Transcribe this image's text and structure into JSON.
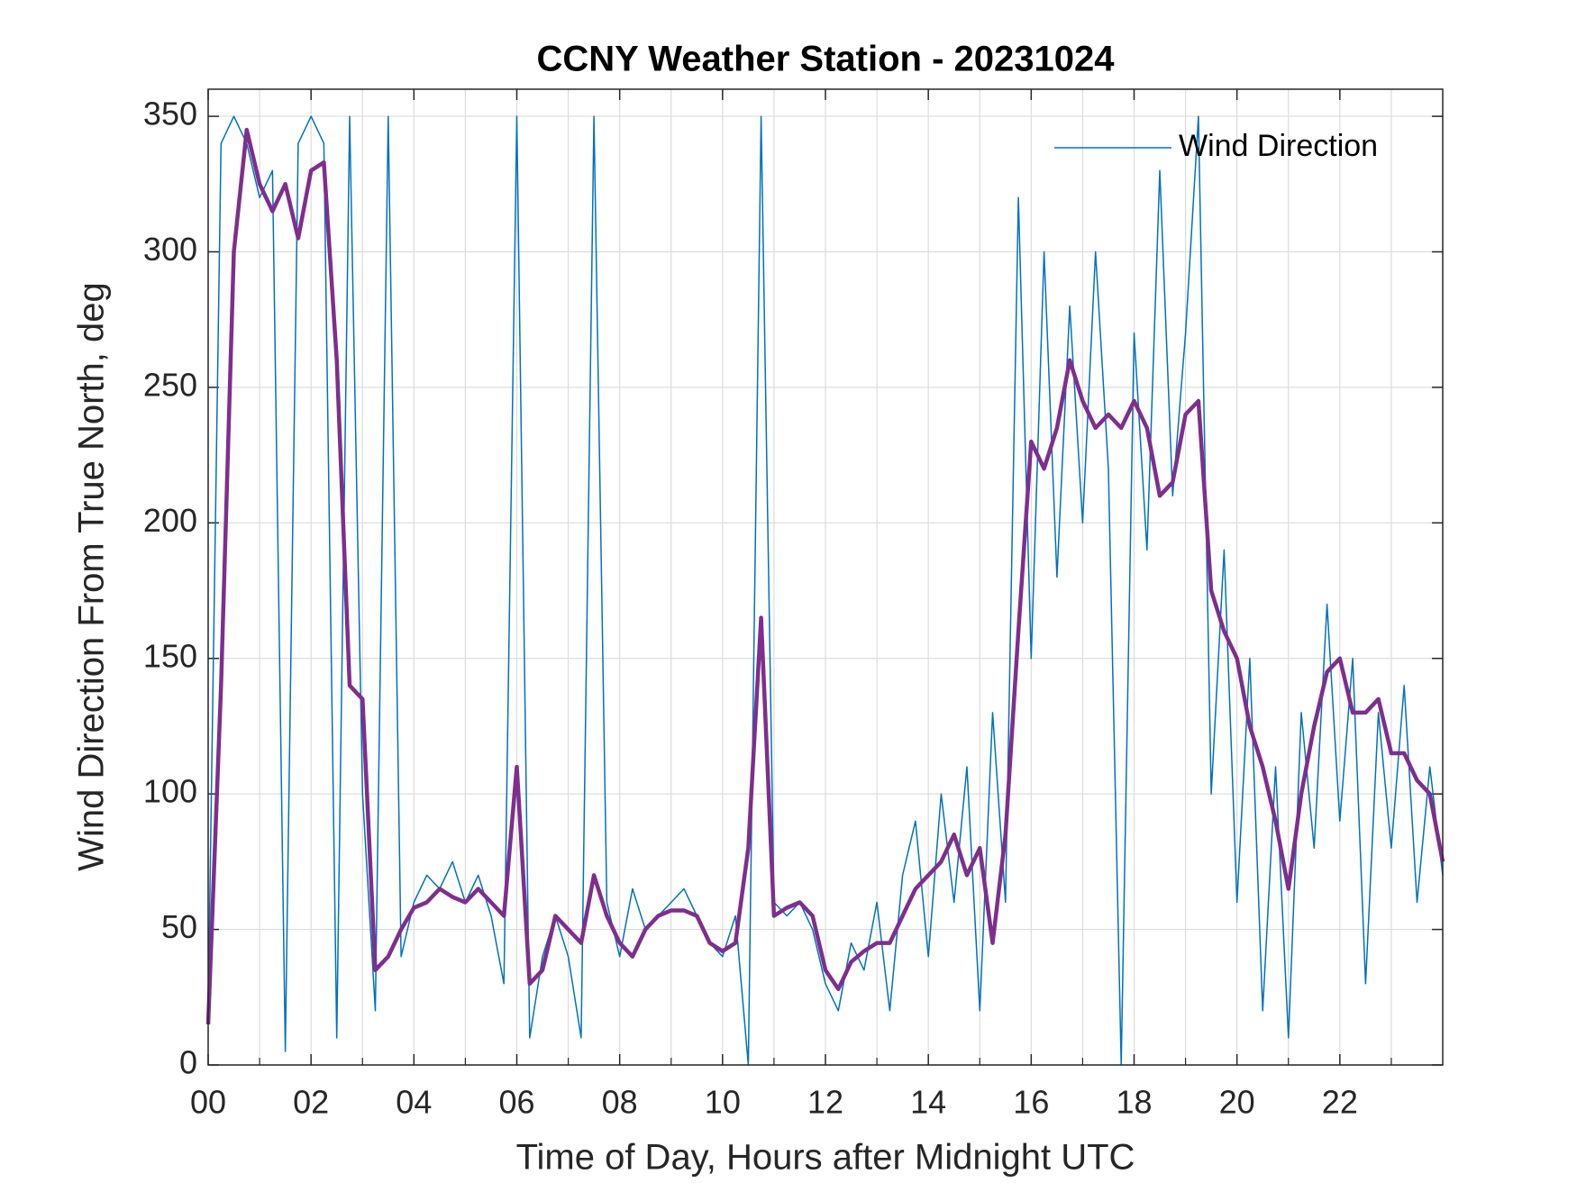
{
  "chart_data": {
    "type": "line",
    "title": "CCNY Weather Station - 20231024",
    "x_label": "Time of Day, Hours after Midnight UTC",
    "y_label": "Wind Direction From True North, deg",
    "x": [
      0,
      0.25,
      0.5,
      0.75,
      1,
      1.25,
      1.5,
      1.75,
      2,
      2.25,
      2.5,
      2.75,
      3,
      3.25,
      3.5,
      3.75,
      4,
      4.25,
      4.5,
      4.75,
      5,
      5.25,
      5.5,
      5.75,
      6,
      6.25,
      6.5,
      6.75,
      7,
      7.25,
      7.5,
      7.75,
      8,
      8.25,
      8.5,
      8.75,
      9,
      9.25,
      9.5,
      9.75,
      10,
      10.25,
      10.5,
      10.75,
      11,
      11.25,
      11.5,
      11.75,
      12,
      12.25,
      12.5,
      12.75,
      13,
      13.25,
      13.5,
      13.75,
      14,
      14.25,
      14.5,
      14.75,
      15,
      15.25,
      15.5,
      15.75,
      16,
      16.25,
      16.5,
      16.75,
      17,
      17.25,
      17.5,
      17.75,
      18,
      18.25,
      18.5,
      18.75,
      19,
      19.25,
      19.5,
      19.75,
      20,
      20.25,
      20.5,
      20.75,
      21,
      21.25,
      21.5,
      21.75,
      22,
      22.25,
      22.5,
      22.75,
      23,
      23.25,
      23.5,
      23.75,
      24
    ],
    "series": [
      {
        "name": "Wind Direction",
        "color": "#0072bd",
        "width": 1.5,
        "values": [
          20,
          340,
          350,
          340,
          320,
          330,
          5,
          340,
          350,
          340,
          10,
          350,
          100,
          20,
          350,
          40,
          60,
          70,
          65,
          75,
          60,
          70,
          55,
          30,
          350,
          10,
          40,
          55,
          40,
          10,
          350,
          60,
          40,
          65,
          50,
          55,
          60,
          65,
          55,
          45,
          40,
          55,
          0,
          350,
          60,
          55,
          60,
          50,
          30,
          20,
          45,
          35,
          60,
          20,
          70,
          90,
          40,
          100,
          60,
          110,
          20,
          130,
          60,
          320,
          150,
          300,
          180,
          280,
          200,
          300,
          220,
          0,
          270,
          190,
          330,
          210,
          270,
          350,
          100,
          190,
          60,
          150,
          20,
          110,
          10,
          130,
          80,
          170,
          90,
          150,
          30,
          130,
          80,
          140,
          60,
          110,
          70
        ]
      },
      {
        "color": "#7e2f8e",
        "width": 4.5,
        "values": [
          15,
          140,
          300,
          345,
          325,
          315,
          325,
          305,
          330,
          333,
          260,
          140,
          135,
          35,
          40,
          50,
          58,
          60,
          65,
          62,
          60,
          65,
          60,
          55,
          110,
          30,
          35,
          55,
          50,
          45,
          70,
          55,
          45,
          40,
          50,
          55,
          57,
          57,
          55,
          45,
          42,
          45,
          80,
          165,
          55,
          58,
          60,
          55,
          35,
          28,
          38,
          42,
          45,
          45,
          55,
          65,
          70,
          75,
          85,
          70,
          80,
          45,
          85,
          160,
          230,
          220,
          235,
          260,
          245,
          235,
          240,
          235,
          245,
          235,
          210,
          215,
          240,
          245,
          175,
          160,
          150,
          125,
          110,
          90,
          65,
          100,
          125,
          145,
          150,
          130,
          130,
          135,
          115,
          115,
          105,
          100,
          75
        ]
      }
    ],
    "xlim": [
      0,
      24
    ],
    "ylim": [
      0,
      360
    ],
    "xticks": [
      {
        "value": 0,
        "label": "00"
      },
      {
        "value": 2,
        "label": "02"
      },
      {
        "value": 4,
        "label": "04"
      },
      {
        "value": 6,
        "label": "06"
      },
      {
        "value": 8,
        "label": "08"
      },
      {
        "value": 10,
        "label": "10"
      },
      12,
      14,
      16,
      18,
      20,
      22
    ],
    "xminorticks": [
      1,
      3,
      5,
      7,
      9,
      11,
      13,
      15,
      17,
      19,
      21,
      23
    ],
    "yticks": [
      0,
      50,
      100,
      150,
      200,
      250,
      300,
      350
    ],
    "grid": true,
    "legend": "northeast"
  }
}
